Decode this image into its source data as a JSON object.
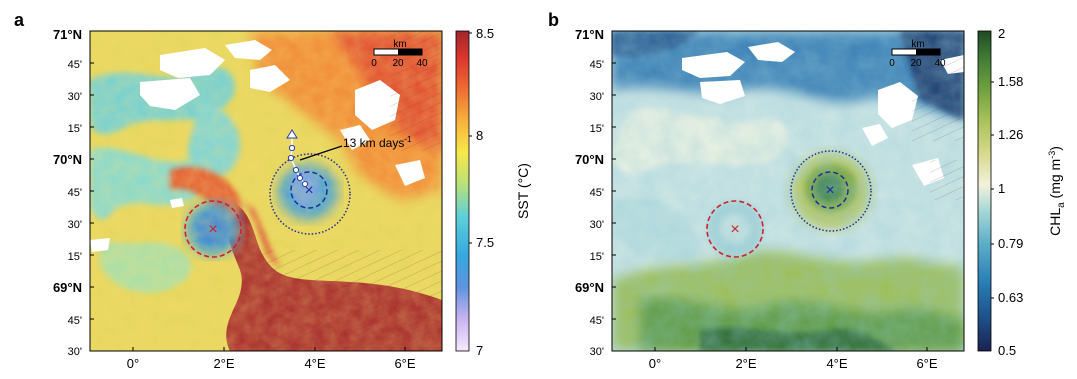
{
  "panels": [
    {
      "letter": "a",
      "lat_labels": [
        "71°N",
        "45'",
        "30'",
        "15'",
        "70°N",
        "45'",
        "30'",
        "15'",
        "69°N",
        "45'",
        "30'"
      ],
      "lon_labels": [
        "0°",
        "2°E",
        "4°E",
        "6°E"
      ],
      "colorbar": {
        "title": "SST (°C)",
        "ticks": [
          "8.5",
          "8",
          "7.5",
          "7"
        ],
        "colors": [
          "#f7e9ff",
          "#c9b3f0",
          "#5f93e0",
          "#35a8e0",
          "#5ed0d8",
          "#b8e07a",
          "#f7e84a",
          "#f7b13c",
          "#ef6b32",
          "#d9342d",
          "#a0272b"
        ]
      },
      "scale_bar": {
        "unit": "km",
        "ticks": [
          "0",
          "20",
          "40"
        ]
      },
      "annotation": "13 km days",
      "annotation_exp": "-1",
      "markers": {
        "red_cross": "×",
        "blue_cross": "×"
      }
    },
    {
      "letter": "b",
      "lat_labels": [
        "71°N",
        "45'",
        "30'",
        "15'",
        "70°N",
        "45'",
        "30'",
        "15'",
        "69°N",
        "45'",
        "30'"
      ],
      "lon_labels": [
        "0°",
        "2°E",
        "4°E",
        "6°E"
      ],
      "colorbar": {
        "title": "CHL",
        "title_sub": "a",
        "title_unit": "(mg m",
        "title_unit_exp": "-3",
        "title_unit_end": ")",
        "ticks": [
          "2",
          "1.58",
          "1.26",
          "1",
          "0.79",
          "0.63",
          "0.5"
        ],
        "colors": [
          "#1b2150",
          "#1d4f88",
          "#2a80b8",
          "#5fb0c8",
          "#a8d8d8",
          "#f2f2dc",
          "#d6d88a",
          "#a8c25a",
          "#6fa03e",
          "#3f7a35",
          "#1f4a26"
        ]
      },
      "scale_bar": {
        "unit": "km",
        "ticks": [
          "0",
          "20",
          "40"
        ]
      },
      "markers": {
        "red_cross": "×",
        "blue_cross": "×"
      }
    }
  ]
}
